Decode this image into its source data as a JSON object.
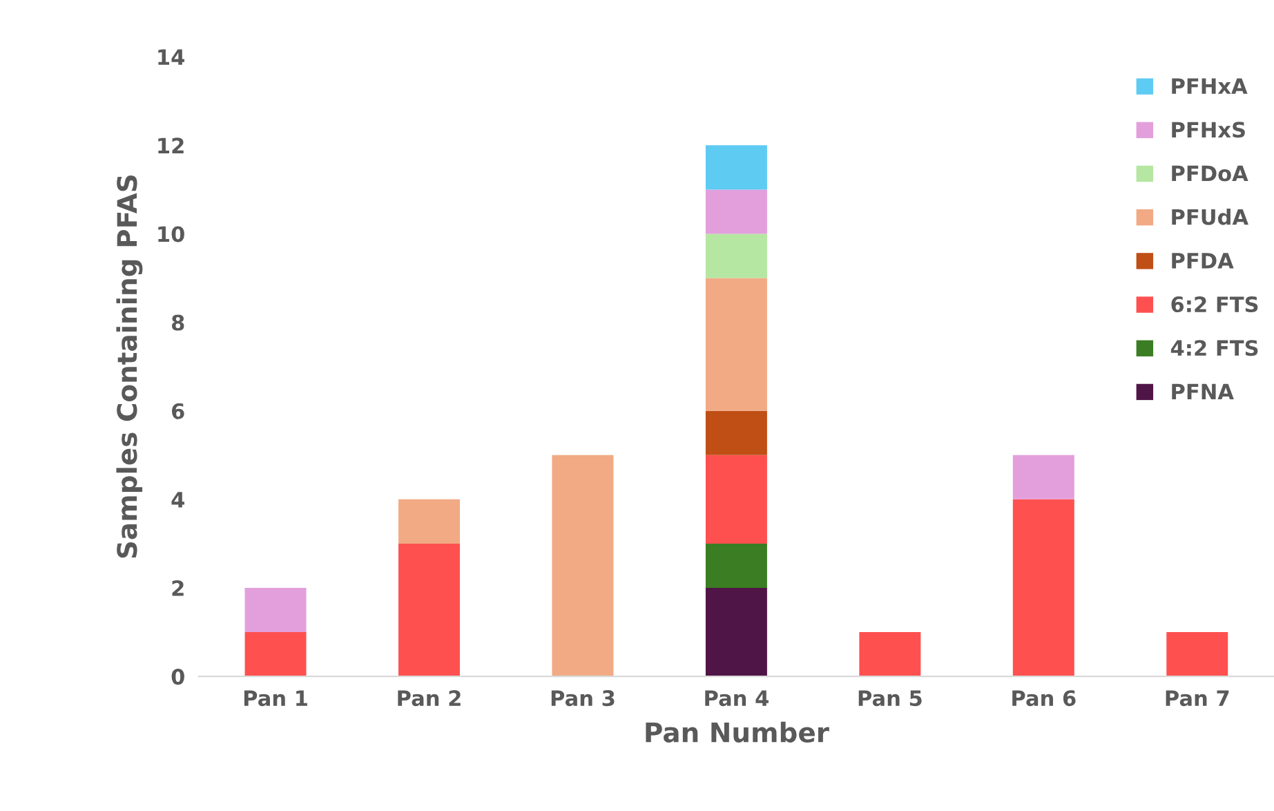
{
  "chart_data": {
    "type": "bar",
    "stacked": true,
    "xlabel": "Pan Number",
    "ylabel": "Samples Containing PFAS",
    "categories": [
      "Pan 1",
      "Pan 2",
      "Pan 3",
      "Pan 4",
      "Pan 5",
      "Pan 6",
      "Pan 7"
    ],
    "series": [
      {
        "name": "PFNA",
        "color": "#501547",
        "values": [
          0,
          0,
          0,
          2,
          0,
          0,
          0
        ]
      },
      {
        "name": "4:2 FTS",
        "color": "#3a7d22",
        "values": [
          0,
          0,
          0,
          1,
          0,
          0,
          0
        ]
      },
      {
        "name": "6:2 FTS",
        "color": "#ff5050",
        "values": [
          1,
          3,
          0,
          2,
          1,
          4,
          1
        ]
      },
      {
        "name": "PFDA",
        "color": "#c04f15",
        "values": [
          0,
          0,
          0,
          1,
          0,
          0,
          0
        ]
      },
      {
        "name": "PFUdA",
        "color": "#f1aa84",
        "values": [
          0,
          1,
          5,
          3,
          0,
          0,
          0
        ]
      },
      {
        "name": "PFDoA",
        "color": "#b5e6a2",
        "values": [
          0,
          0,
          0,
          1,
          0,
          0,
          0
        ]
      },
      {
        "name": "PFHxS",
        "color": "#e39fdc",
        "values": [
          1,
          0,
          0,
          1,
          0,
          1,
          0
        ]
      },
      {
        "name": "PFHxA",
        "color": "#5ecbf3",
        "values": [
          0,
          0,
          0,
          1,
          0,
          0,
          0
        ]
      }
    ],
    "ylim": [
      0,
      14
    ],
    "yticks": [
      0,
      2,
      4,
      6,
      8,
      10,
      12,
      14
    ],
    "grid": false,
    "legend": "top right"
  }
}
